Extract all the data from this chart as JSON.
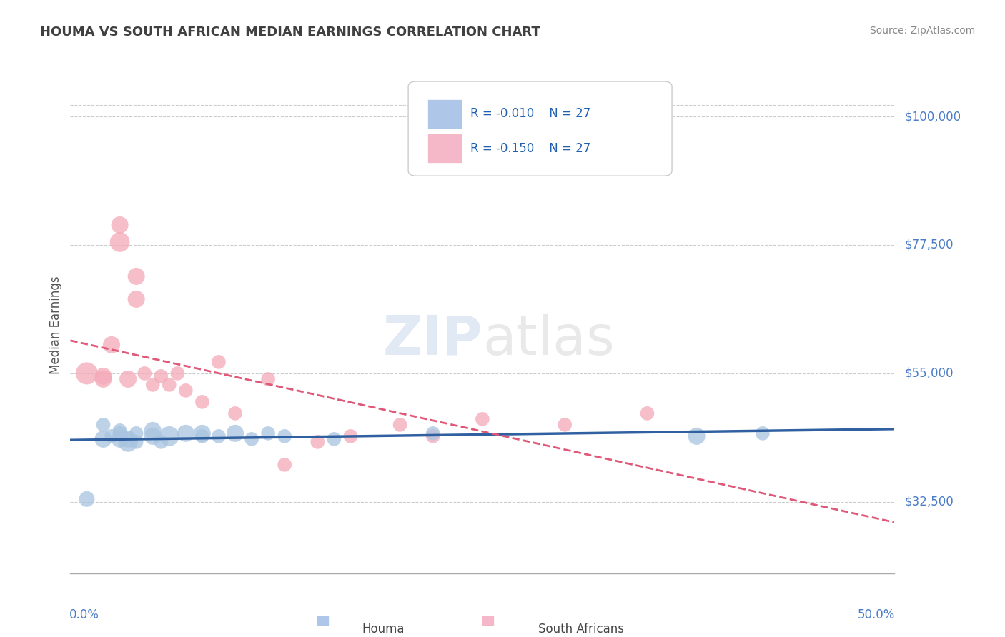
{
  "title": "HOUMA VS SOUTH AFRICAN MEDIAN EARNINGS CORRELATION CHART",
  "source": "Source: ZipAtlas.com",
  "ylabel": "Median Earnings",
  "y_ticks": [
    32500,
    55000,
    77500,
    100000
  ],
  "y_tick_labels": [
    "$32,500",
    "$55,000",
    "$77,500",
    "$100,000"
  ],
  "xlim": [
    0.0,
    0.5
  ],
  "ylim": [
    20000,
    107000
  ],
  "houma_color": "#a8c4e0",
  "sa_color": "#f4a9b8",
  "houma_line_color": "#3060a0",
  "sa_line_color": "#e05878",
  "bg_color": "#ffffff",
  "grid_color": "#cccccc",
  "legend_box_color1": "#aec6e8",
  "legend_box_color2": "#f4b8c8",
  "title_color": "#404040",
  "axis_label_color": "#4a7cc7",
  "watermark_zip": "ZIP",
  "watermark_atlas": "atlas",
  "houma_scatter": {
    "x": [
      0.01,
      0.02,
      0.02,
      0.025,
      0.03,
      0.03,
      0.03,
      0.035,
      0.035,
      0.04,
      0.04,
      0.05,
      0.05,
      0.055,
      0.06,
      0.07,
      0.08,
      0.08,
      0.09,
      0.1,
      0.11,
      0.12,
      0.13,
      0.16,
      0.22,
      0.38,
      0.42
    ],
    "y": [
      33000,
      43500,
      46000,
      44000,
      43500,
      44500,
      45000,
      43000,
      43500,
      43000,
      44500,
      44000,
      45000,
      43000,
      44000,
      44500,
      44500,
      44000,
      44000,
      44500,
      43500,
      44500,
      44000,
      43500,
      44500,
      44000,
      44500
    ],
    "sizes": [
      250,
      300,
      200,
      200,
      300,
      200,
      200,
      400,
      300,
      200,
      200,
      300,
      300,
      200,
      400,
      300,
      300,
      200,
      200,
      300,
      200,
      200,
      200,
      200,
      200,
      300,
      200
    ]
  },
  "sa_scatter": {
    "x": [
      0.01,
      0.02,
      0.02,
      0.025,
      0.03,
      0.03,
      0.035,
      0.04,
      0.04,
      0.045,
      0.05,
      0.055,
      0.06,
      0.065,
      0.07,
      0.08,
      0.09,
      0.1,
      0.12,
      0.13,
      0.15,
      0.17,
      0.2,
      0.22,
      0.25,
      0.3,
      0.35
    ],
    "y": [
      55000,
      54000,
      54500,
      60000,
      78000,
      81000,
      54000,
      72000,
      68000,
      55000,
      53000,
      54500,
      53000,
      55000,
      52000,
      50000,
      57000,
      48000,
      54000,
      39000,
      43000,
      44000,
      46000,
      44000,
      47000,
      46000,
      48000
    ],
    "sizes": [
      500,
      300,
      300,
      300,
      400,
      300,
      300,
      300,
      300,
      200,
      200,
      200,
      200,
      200,
      200,
      200,
      200,
      200,
      200,
      200,
      200,
      200,
      200,
      200,
      200,
      200,
      200
    ]
  },
  "bottom_labels": [
    "Houma",
    "South Africans"
  ]
}
